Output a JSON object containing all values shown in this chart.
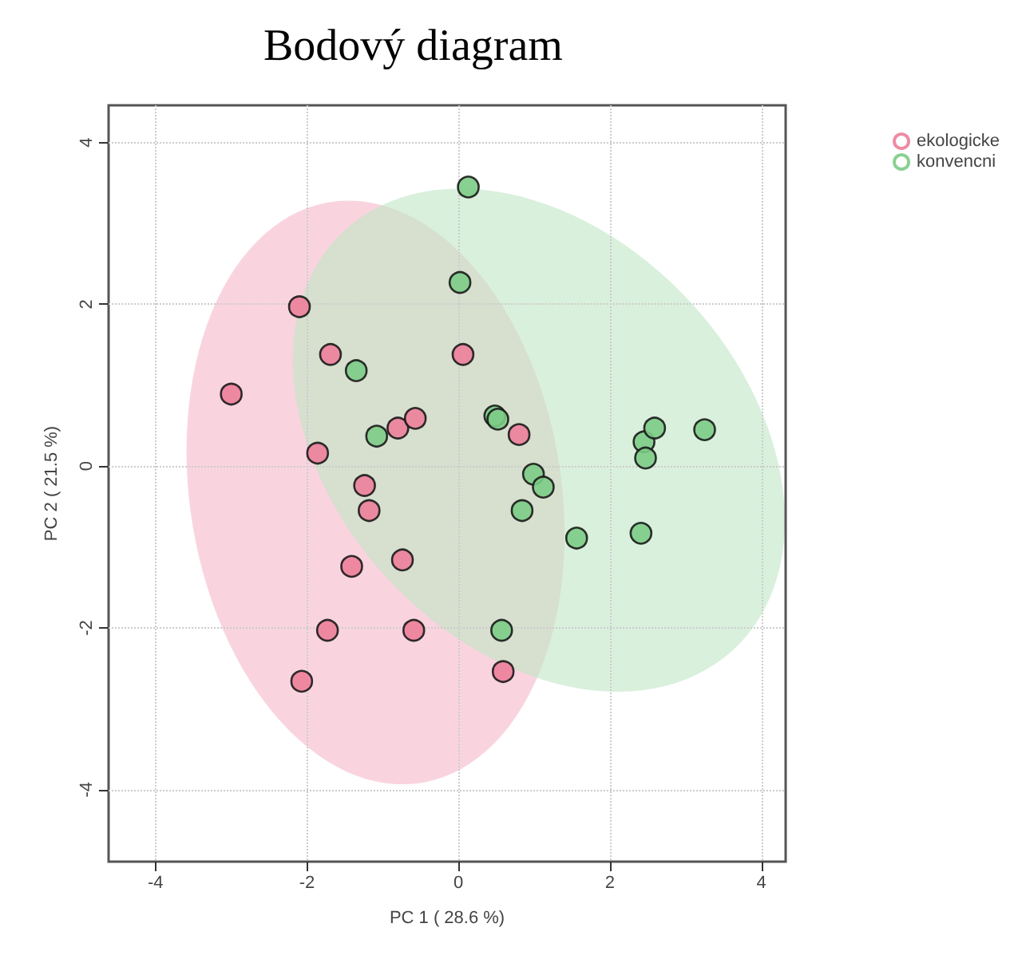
{
  "chart_data": {
    "type": "scatter",
    "title": "Bodový diagram",
    "xlabel": "PC 1 ( 28.6 %)",
    "ylabel": "PC 2 ( 21.5 %)",
    "xlim": [
      -4.62,
      4.32
    ],
    "ylim": [
      -4.89,
      4.46
    ],
    "xticks": [
      -4,
      -2,
      0,
      2,
      4
    ],
    "yticks": [
      -4,
      -2,
      0,
      2,
      4
    ],
    "grid": true,
    "legend": "top right",
    "marker": "circle",
    "series": [
      {
        "name": "ekologicke",
        "color": "#ec7f9a",
        "x": [
          -3.0,
          -2.1,
          -1.69,
          -1.86,
          -1.24,
          -1.18,
          -1.41,
          -0.74,
          -1.73,
          -0.59,
          -2.07,
          0.59,
          0.06,
          -0.8,
          -0.57,
          0.8
        ],
        "values": [
          0.89,
          1.97,
          1.38,
          0.16,
          -0.24,
          -0.55,
          -1.24,
          -1.16,
          -2.03,
          -2.03,
          -2.66,
          -2.54,
          1.38,
          0.47,
          0.59,
          0.39
        ]
      },
      {
        "name": "konvencni",
        "color": "#7ccc86",
        "x": [
          0.13,
          0.02,
          -1.35,
          -1.08,
          0.48,
          0.52,
          0.99,
          1.12,
          0.84,
          1.56,
          2.41,
          2.45,
          2.47,
          2.59,
          3.25,
          0.57
        ],
        "values": [
          3.45,
          2.27,
          1.18,
          0.37,
          0.62,
          0.58,
          -0.1,
          -0.26,
          -0.55,
          -0.89,
          -0.83,
          0.3,
          0.1,
          0.47,
          0.45,
          -2.03
        ]
      }
    ]
  }
}
